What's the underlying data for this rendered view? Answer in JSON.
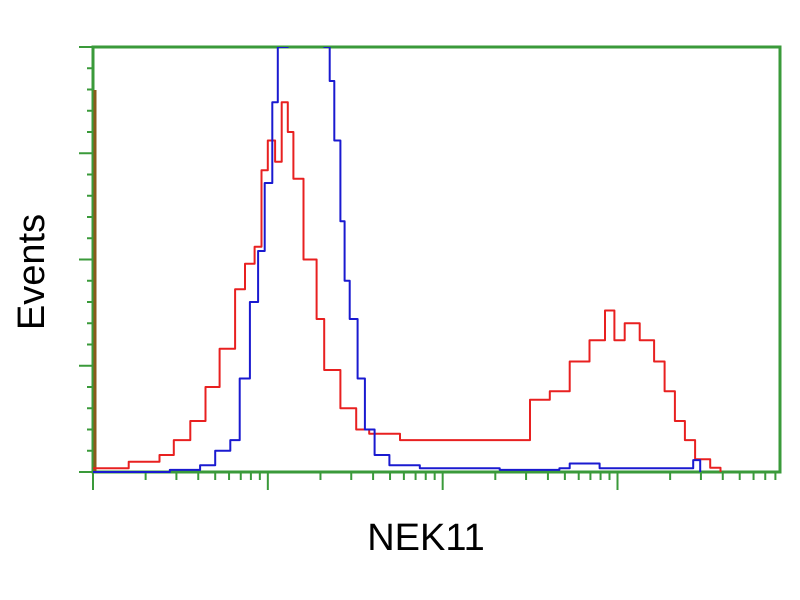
{
  "chart_data": {
    "type": "line",
    "title": "",
    "xlabel": "NEK11",
    "ylabel": "Events",
    "x_scale": "log",
    "xlim": [
      1,
      8500
    ],
    "ylim": [
      0,
      100
    ],
    "grid": false,
    "colors": {
      "axis": "#3a9a3a",
      "left_marker": "#8a5a1a"
    },
    "series": [
      {
        "color": "#e82020",
        "x": [
          1.0,
          1.6,
          2.4,
          2.9,
          3.6,
          4.4,
          5.3,
          6.5,
          7.4,
          8.4,
          9.2,
          10,
          11,
          12,
          13,
          14,
          16,
          19,
          21,
          26,
          32,
          38,
          57,
          84,
          142,
          212,
          276,
          316,
          410,
          533,
          692,
          848,
          960,
          1100,
          1340,
          1620,
          1860,
          2130,
          2430,
          2780,
          3390,
          3880
        ],
        "y": [
          0.9,
          2.4,
          4,
          7.5,
          12,
          20,
          29,
          43,
          49,
          53,
          71,
          78,
          73,
          87,
          80,
          69,
          50,
          36,
          24,
          15,
          10,
          9,
          7.5,
          7.5,
          7.5,
          7.5,
          7.5,
          17,
          19,
          26,
          31,
          38,
          31,
          35,
          31,
          26,
          19,
          12,
          7.5,
          3,
          1,
          0
        ]
      },
      {
        "color": "#1a1ad0",
        "x": [
          1.0,
          2.75,
          4.1,
          5,
          6.1,
          6.9,
          7.9,
          8.8,
          9.6,
          10.6,
          11.4,
          13,
          17,
          21,
          22.6,
          24,
          26,
          27.5,
          29.4,
          32.6,
          35.9,
          40.8,
          49.6,
          74,
          212,
          465,
          533,
          790,
          2500,
          2710,
          2970
        ],
        "y": [
          0,
          0.5,
          1.6,
          5,
          7.5,
          22,
          40,
          52,
          68,
          87,
          100,
          115,
          115,
          100,
          92,
          78,
          59,
          45,
          36,
          22,
          10,
          4,
          1.6,
          0.9,
          0.5,
          0.9,
          2,
          0.9,
          0.9,
          2.8,
          0
        ]
      }
    ]
  }
}
